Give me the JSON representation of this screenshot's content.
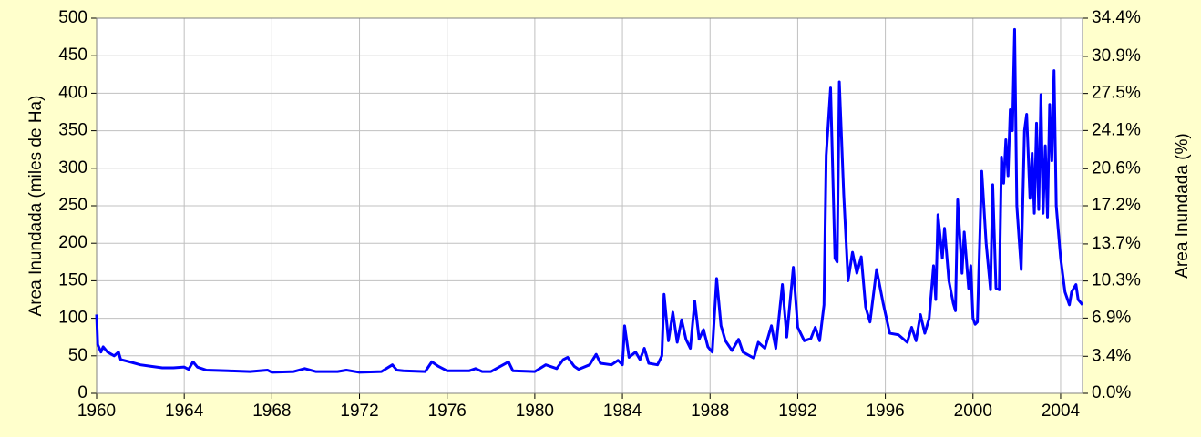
{
  "chart_data": {
    "type": "line",
    "y_label": "Area Inundada (miles de Ha)",
    "y2_label": "Area Inundada (%)",
    "color": "#0000ff",
    "grid": true,
    "xlim": [
      1960,
      2005
    ],
    "xticks": [
      1960,
      1964,
      1968,
      1972,
      1976,
      1980,
      1984,
      1988,
      1992,
      1996,
      2000,
      2004
    ],
    "ylim": [
      0,
      500
    ],
    "yticks": [
      0,
      50,
      100,
      150,
      200,
      250,
      300,
      350,
      400,
      450,
      500
    ],
    "y2lim": [
      0,
      34.4
    ],
    "y2ticks": [
      {
        "value": 0,
        "label": "0.0%"
      },
      {
        "value": 3.4,
        "label": "3.4%"
      },
      {
        "value": 6.9,
        "label": "6.9%"
      },
      {
        "value": 10.3,
        "label": "10.3%"
      },
      {
        "value": 13.7,
        "label": "13.7%"
      },
      {
        "value": 17.2,
        "label": "17.2%"
      },
      {
        "value": 20.6,
        "label": "20.6%"
      },
      {
        "value": 24.1,
        "label": "24.1%"
      },
      {
        "value": 27.5,
        "label": "27.5%"
      },
      {
        "value": 30.9,
        "label": "30.9%"
      },
      {
        "value": 34.4,
        "label": "34.4%"
      }
    ],
    "x": [
      1960.0,
      1960.05,
      1960.2,
      1960.3,
      1960.5,
      1960.8,
      1961.0,
      1961.1,
      1961.5,
      1962.0,
      1962.5,
      1963.0,
      1963.5,
      1964.0,
      1964.2,
      1964.4,
      1964.6,
      1965.0,
      1966.0,
      1967.0,
      1967.8,
      1968.0,
      1969.0,
      1969.5,
      1970.0,
      1971.0,
      1971.4,
      1972.0,
      1973.0,
      1973.5,
      1973.7,
      1974.0,
      1975.0,
      1975.3,
      1975.6,
      1976.0,
      1977.0,
      1977.3,
      1977.6,
      1978.0,
      1978.8,
      1979.0,
      1980.0,
      1980.5,
      1981.0,
      1981.3,
      1981.5,
      1981.8,
      1982.0,
      1982.5,
      1982.8,
      1983.0,
      1983.5,
      1983.8,
      1984.0,
      1984.1,
      1984.3,
      1984.6,
      1984.8,
      1985.0,
      1985.2,
      1985.6,
      1985.8,
      1985.9,
      1986.1,
      1986.3,
      1986.5,
      1986.7,
      1986.9,
      1987.1,
      1987.3,
      1987.5,
      1987.7,
      1987.9,
      1988.1,
      1988.3,
      1988.5,
      1988.7,
      1989.0,
      1989.3,
      1989.5,
      1990.0,
      1990.2,
      1990.5,
      1990.8,
      1991.0,
      1991.3,
      1991.5,
      1991.8,
      1992.0,
      1992.3,
      1992.6,
      1992.8,
      1993.0,
      1993.2,
      1993.3,
      1993.5,
      1993.7,
      1993.8,
      1993.9,
      1994.1,
      1994.3,
      1994.5,
      1994.7,
      1994.9,
      1995.1,
      1995.3,
      1995.6,
      1995.9,
      1996.2,
      1996.6,
      1997.0,
      1997.2,
      1997.4,
      1997.6,
      1997.8,
      1998.0,
      1998.2,
      1998.3,
      1998.4,
      1998.6,
      1998.7,
      1998.9,
      1999.1,
      1999.2,
      1999.3,
      1999.5,
      1999.6,
      1999.8,
      1999.9,
      2000.0,
      2000.1,
      2000.2,
      2000.4,
      2000.6,
      2000.8,
      2000.9,
      2001.05,
      2001.2,
      2001.3,
      2001.4,
      2001.5,
      2001.6,
      2001.7,
      2001.8,
      2001.9,
      2002.0,
      2002.2,
      2002.35,
      2002.45,
      2002.6,
      2002.7,
      2002.8,
      2002.9,
      2003.0,
      2003.1,
      2003.2,
      2003.3,
      2003.4,
      2003.5,
      2003.6,
      2003.7,
      2003.8,
      2004.0,
      2004.2,
      2004.4,
      2004.5,
      2004.7,
      2004.8,
      2005.0
    ],
    "values": [
      105,
      65,
      55,
      62,
      55,
      50,
      55,
      45,
      42,
      38,
      36,
      34,
      34,
      35,
      32,
      42,
      35,
      31,
      30,
      29,
      31,
      28,
      29,
      33,
      29,
      29,
      31,
      28,
      29,
      38,
      31,
      30,
      29,
      42,
      36,
      30,
      30,
      33,
      29,
      29,
      42,
      30,
      29,
      38,
      33,
      45,
      48,
      36,
      32,
      38,
      52,
      40,
      38,
      44,
      38,
      90,
      48,
      55,
      45,
      60,
      40,
      38,
      50,
      132,
      70,
      108,
      68,
      98,
      72,
      60,
      123,
      72,
      85,
      62,
      55,
      153,
      90,
      70,
      57,
      72,
      55,
      47,
      68,
      60,
      90,
      60,
      145,
      75,
      168,
      88,
      70,
      73,
      88,
      70,
      118,
      317,
      407,
      180,
      175,
      415,
      265,
      150,
      188,
      160,
      182,
      115,
      95,
      165,
      120,
      80,
      78,
      68,
      88,
      70,
      105,
      80,
      100,
      170,
      125,
      238,
      180,
      220,
      150,
      120,
      110,
      258,
      160,
      215,
      140,
      170,
      100,
      92,
      95,
      296,
      200,
      138,
      278,
      140,
      138,
      315,
      280,
      338,
      290,
      378,
      350,
      485,
      250,
      165,
      350,
      372,
      260,
      320,
      240,
      360,
      245,
      398,
      240,
      330,
      235,
      385,
      310,
      430,
      250,
      180,
      135,
      118,
      135,
      145,
      125,
      118
    ]
  }
}
